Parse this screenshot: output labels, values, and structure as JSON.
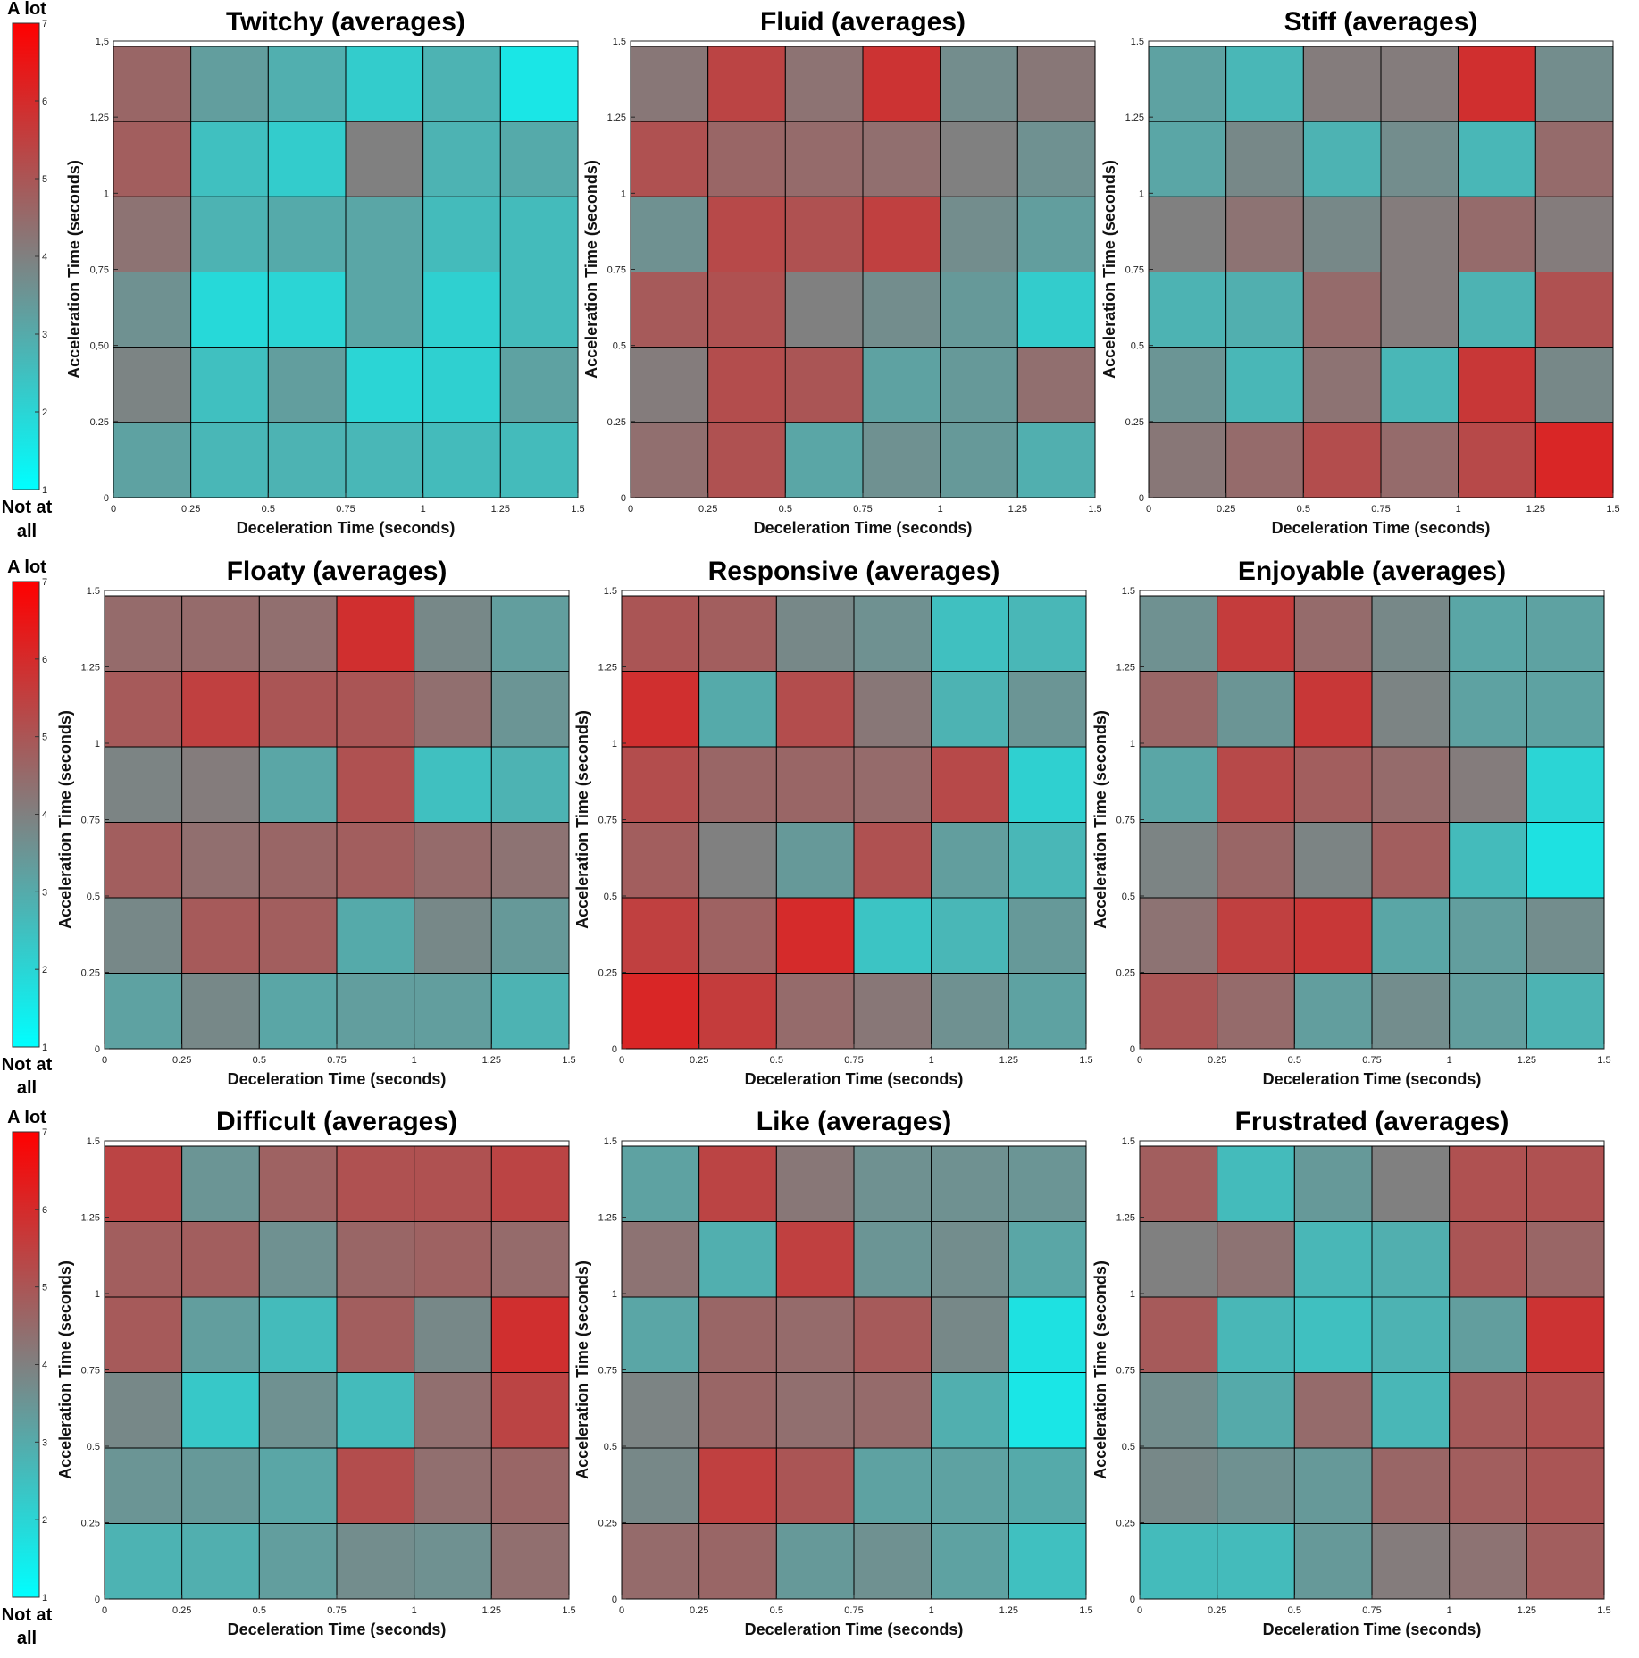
{
  "colors": {
    "low": "#00ffff",
    "mid": "#808080",
    "high": "#ff0000",
    "grid": "#000000"
  },
  "colorbar": {
    "top_label": "A lot",
    "bottom_label_1": "Not at",
    "bottom_label_2": "all",
    "min": 1,
    "max": 7,
    "ticks": [
      "1",
      "2",
      "3",
      "4",
      "5",
      "6",
      "7"
    ]
  },
  "chart_data": [
    {
      "type": "heatmap",
      "title": "Twitchy (averages)",
      "xlabel": "Deceleration Time (seconds)",
      "ylabel": "Acceleration Time (seconds)",
      "xticks": [
        "0",
        "0.25",
        "0.5",
        "0.75",
        "1",
        "1.25",
        "1.5"
      ],
      "yticks": [
        "0",
        "0.25",
        "0,50",
        "0,75",
        "1",
        "1,25",
        "1,5"
      ],
      "zlim": [
        1,
        7
      ],
      "rows_top_to_bottom": [
        [
          4.6,
          3.3,
          2.9,
          2.2,
          2.8,
          1.6
        ],
        [
          4.8,
          2.5,
          2.2,
          4.0,
          2.8,
          3.0
        ],
        [
          4.3,
          2.8,
          3.0,
          3.1,
          2.6,
          2.6
        ],
        [
          3.6,
          1.9,
          2.0,
          3.1,
          2.1,
          2.6
        ],
        [
          3.9,
          2.5,
          3.3,
          2.0,
          2.1,
          3.2
        ],
        [
          3.2,
          2.7,
          2.8,
          2.7,
          2.6,
          2.6
        ]
      ]
    },
    {
      "type": "heatmap",
      "title": "Fluid (averages)",
      "xlabel": "Deceleration Time (seconds)",
      "ylabel": "Acceleration Time (seconds)",
      "xticks": [
        "0",
        "0.25",
        "0.5",
        "0.75",
        "1",
        "1.25",
        "1.5"
      ],
      "yticks": [
        "0",
        "0.25",
        "0.5",
        "0.75",
        "1",
        "1.25",
        "1.5"
      ],
      "zlim": [
        1,
        7
      ],
      "rows_top_to_bottom": [
        [
          4.2,
          5.4,
          4.3,
          5.8,
          3.7,
          4.2
        ],
        [
          5.1,
          4.6,
          4.5,
          4.4,
          4.0,
          3.6
        ],
        [
          3.6,
          5.3,
          5.1,
          5.5,
          3.7,
          3.3
        ],
        [
          4.9,
          5.1,
          4.0,
          3.7,
          3.4,
          2.2
        ],
        [
          4.1,
          5.2,
          5.0,
          3.2,
          3.4,
          4.4
        ],
        [
          4.4,
          5.1,
          3.1,
          3.6,
          3.4,
          2.9
        ]
      ]
    },
    {
      "type": "heatmap",
      "title": "Stiff (averages)",
      "xlabel": "Deceleration Time (seconds)",
      "ylabel": "Acceleration Time (seconds)",
      "xticks": [
        "0",
        "0.25",
        "0.5",
        "0.75",
        "1",
        "1.25",
        "1.5"
      ],
      "yticks": [
        "0",
        "0.25",
        "0.5",
        "0.75",
        "1",
        "1.25",
        "1.5"
      ],
      "zlim": [
        1,
        7
      ],
      "rows_top_to_bottom": [
        [
          3.2,
          2.7,
          4.1,
          4.1,
          5.9,
          3.7
        ],
        [
          3.1,
          3.8,
          2.8,
          3.7,
          2.7,
          4.5
        ],
        [
          4.0,
          4.3,
          3.8,
          4.1,
          4.5,
          4.1
        ],
        [
          2.8,
          2.9,
          4.5,
          4.1,
          2.8,
          5.1
        ],
        [
          3.5,
          2.7,
          4.3,
          2.7,
          5.7,
          3.8
        ],
        [
          4.2,
          4.5,
          5.2,
          4.5,
          5.3,
          6.1
        ]
      ]
    },
    {
      "type": "heatmap",
      "title": "Floaty (averages)",
      "xlabel": "Deceleration Time (seconds)",
      "ylabel": "Acceleration Time (seconds)",
      "xticks": [
        "0",
        "0.25",
        "0.5",
        "0.75",
        "1",
        "1.25",
        "1.5"
      ],
      "yticks": [
        "0",
        "0.25",
        "0.5",
        "0.75",
        "1",
        "1.25",
        "1.5"
      ],
      "zlim": [
        1,
        7
      ],
      "rows_top_to_bottom": [
        [
          4.5,
          4.5,
          4.4,
          5.9,
          3.8,
          3.3
        ],
        [
          4.9,
          5.5,
          5.0,
          5.0,
          4.4,
          3.5
        ],
        [
          3.9,
          4.1,
          3.1,
          5.1,
          2.5,
          2.8
        ],
        [
          4.8,
          4.4,
          4.6,
          4.8,
          4.5,
          4.3
        ],
        [
          3.8,
          4.9,
          4.8,
          3.0,
          3.8,
          3.4
        ],
        [
          3.2,
          3.8,
          3.1,
          3.3,
          3.3,
          2.8
        ]
      ]
    },
    {
      "type": "heatmap",
      "title": "Responsive (averages)",
      "xlabel": "Deceleration Time (seconds)",
      "ylabel": "Acceleration Time (seconds)",
      "xticks": [
        "0",
        "0.25",
        "0.5",
        "0.75",
        "1",
        "1.25",
        "1.5"
      ],
      "yticks": [
        "0",
        "0.25",
        "0.5",
        "0.75",
        "1",
        "1.25",
        "1.5"
      ],
      "zlim": [
        1,
        7
      ],
      "rows_top_to_bottom": [
        [
          5.0,
          4.8,
          3.8,
          3.6,
          2.5,
          2.7
        ],
        [
          5.9,
          3.0,
          5.2,
          4.2,
          2.8,
          3.5
        ],
        [
          5.2,
          4.6,
          4.6,
          4.5,
          5.3,
          2.1
        ],
        [
          4.8,
          4.0,
          3.4,
          5.1,
          3.3,
          2.7
        ],
        [
          5.5,
          4.7,
          6.0,
          2.4,
          2.7,
          3.4
        ],
        [
          6.1,
          5.6,
          4.5,
          4.2,
          3.6,
          3.2
        ]
      ]
    },
    {
      "type": "heatmap",
      "title": "Enjoyable (averages)",
      "xlabel": "Deceleration Time (seconds)",
      "ylabel": "Acceleration Time (seconds)",
      "xticks": [
        "0",
        "0.25",
        "0.5",
        "0.75",
        "1",
        "1.25",
        "1.5"
      ],
      "yticks": [
        "0",
        "0.25",
        "0.5",
        "0.75",
        "1",
        "1.25",
        "1.5"
      ],
      "zlim": [
        1,
        7
      ],
      "rows_top_to_bottom": [
        [
          3.6,
          5.6,
          4.5,
          3.8,
          3.1,
          3.2
        ],
        [
          4.6,
          3.5,
          5.7,
          3.9,
          3.2,
          3.2
        ],
        [
          3.1,
          5.3,
          4.8,
          4.5,
          4.1,
          2.0
        ],
        [
          3.9,
          4.6,
          3.9,
          4.8,
          2.6,
          1.7
        ],
        [
          4.3,
          5.5,
          5.7,
          3.1,
          3.3,
          3.7
        ],
        [
          5.0,
          4.5,
          3.3,
          3.7,
          3.3,
          2.8
        ]
      ]
    },
    {
      "type": "heatmap",
      "title": "Difficult (averages)",
      "xlabel": "Deceleration Time (seconds)",
      "ylabel": "Acceleration Time (seconds)",
      "xticks": [
        "0",
        "0.25",
        "0.5",
        "0.75",
        "1",
        "1.25",
        "1.5"
      ],
      "yticks": [
        "0",
        "0.25",
        "0.5",
        "0.75",
        "1",
        "1.25",
        "1.5"
      ],
      "zlim": [
        1,
        7
      ],
      "rows_top_to_bottom": [
        [
          5.4,
          3.5,
          4.7,
          5.1,
          5.1,
          5.4
        ],
        [
          4.8,
          4.8,
          3.6,
          4.6,
          4.7,
          4.5
        ],
        [
          4.9,
          3.3,
          2.6,
          4.8,
          3.8,
          5.9
        ],
        [
          3.8,
          2.3,
          3.6,
          2.6,
          4.4,
          5.4
        ],
        [
          3.5,
          3.4,
          3.1,
          5.2,
          4.4,
          4.6
        ],
        [
          2.8,
          2.9,
          3.3,
          3.7,
          3.6,
          4.4
        ]
      ]
    },
    {
      "type": "heatmap",
      "title": "Like (averages)",
      "xlabel": "Deceleration Time (seconds)",
      "ylabel": "Acceleration Time (seconds)",
      "xticks": [
        "0",
        "0.25",
        "0.5",
        "0.75",
        "1",
        "1.25",
        "1.5"
      ],
      "yticks": [
        "0",
        "0.25",
        "0.5",
        "0.75",
        "1",
        "1.25",
        "1.5"
      ],
      "zlim": [
        1,
        7
      ],
      "rows_top_to_bottom": [
        [
          3.2,
          5.4,
          4.2,
          3.6,
          3.6,
          3.5
        ],
        [
          4.3,
          2.9,
          5.5,
          3.5,
          3.7,
          3.1
        ],
        [
          3.1,
          4.6,
          4.5,
          4.9,
          3.8,
          1.7
        ],
        [
          3.9,
          4.6,
          4.4,
          4.5,
          2.9,
          1.6
        ],
        [
          3.8,
          5.5,
          5.0,
          3.2,
          3.2,
          3.0
        ],
        [
          4.5,
          4.6,
          3.4,
          3.6,
          3.2,
          2.5
        ]
      ]
    },
    {
      "type": "heatmap",
      "title": "Frustrated (averages)",
      "xlabel": "Deceleration Time (seconds)",
      "ylabel": "Acceleration Time (seconds)",
      "xticks": [
        "0",
        "0.25",
        "0.5",
        "0.75",
        "1",
        "1.25",
        "1.5"
      ],
      "yticks": [
        "0",
        "0.25",
        "0.5",
        "0.75",
        "1",
        "1.25",
        "1.5"
      ],
      "zlim": [
        1,
        7
      ],
      "rows_top_to_bottom": [
        [
          4.8,
          2.6,
          3.4,
          4.0,
          5.1,
          5.1
        ],
        [
          4.0,
          4.3,
          2.7,
          2.9,
          5.0,
          4.6
        ],
        [
          4.9,
          2.7,
          2.5,
          2.8,
          3.3,
          5.8
        ],
        [
          3.7,
          3.0,
          4.5,
          2.7,
          4.9,
          5.1
        ],
        [
          3.8,
          3.6,
          3.4,
          4.6,
          4.8,
          5.0
        ],
        [
          2.6,
          2.6,
          3.4,
          4.1,
          4.3,
          4.8
        ]
      ]
    }
  ]
}
